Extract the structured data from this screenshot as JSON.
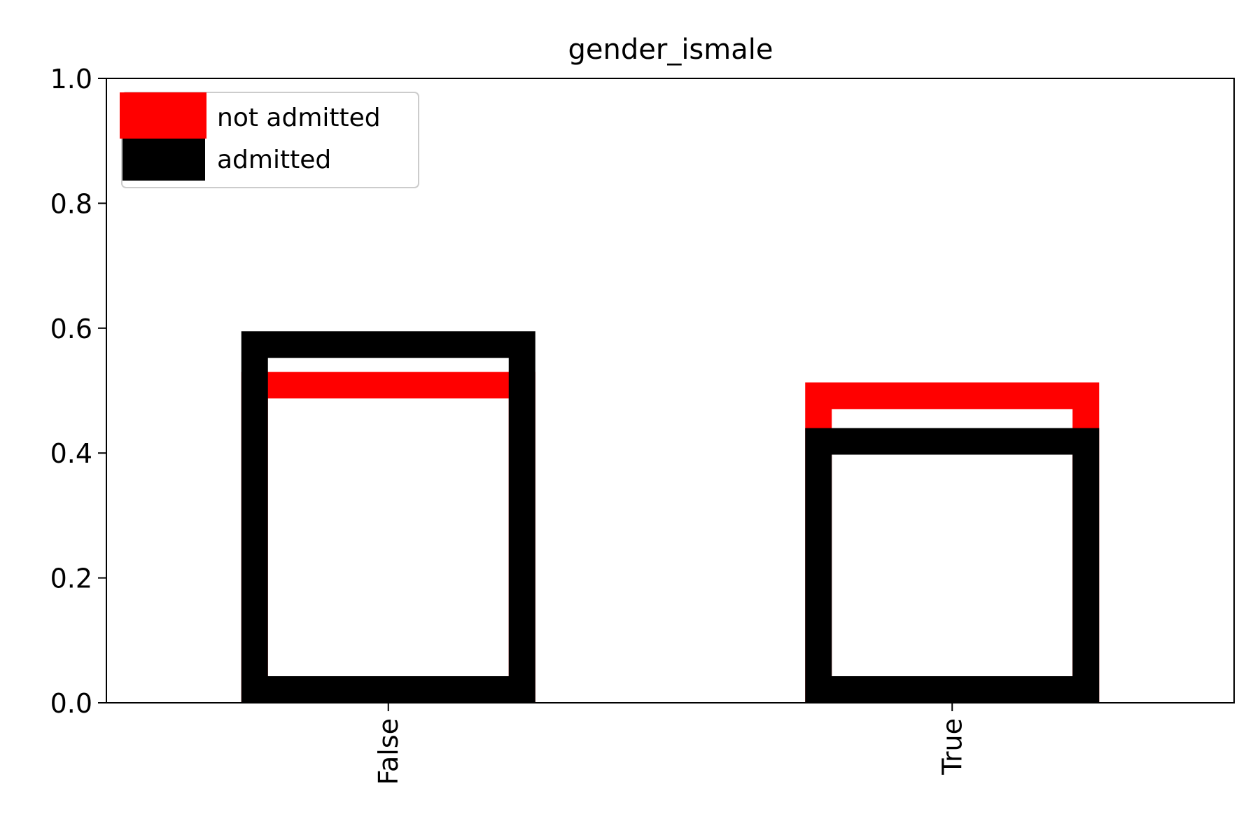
{
  "chart_data": {
    "type": "bar",
    "title": "gender_ismale",
    "xlabel": "",
    "ylabel": "",
    "categories": [
      "False",
      "True"
    ],
    "series": [
      {
        "name": "not admitted",
        "values": [
          0.53,
          0.513
        ],
        "color": "#ff0000"
      },
      {
        "name": "admitted",
        "values": [
          0.595,
          0.44
        ],
        "color": "#000000"
      }
    ],
    "ylim": [
      0.0,
      1.0
    ],
    "yticks": [
      "0.0",
      "0.2",
      "0.4",
      "0.6",
      "0.8",
      "1.0"
    ],
    "xtick_rotation": 90,
    "grid": false,
    "legend_position": "top-left",
    "bar_style": "hollow outlined"
  }
}
